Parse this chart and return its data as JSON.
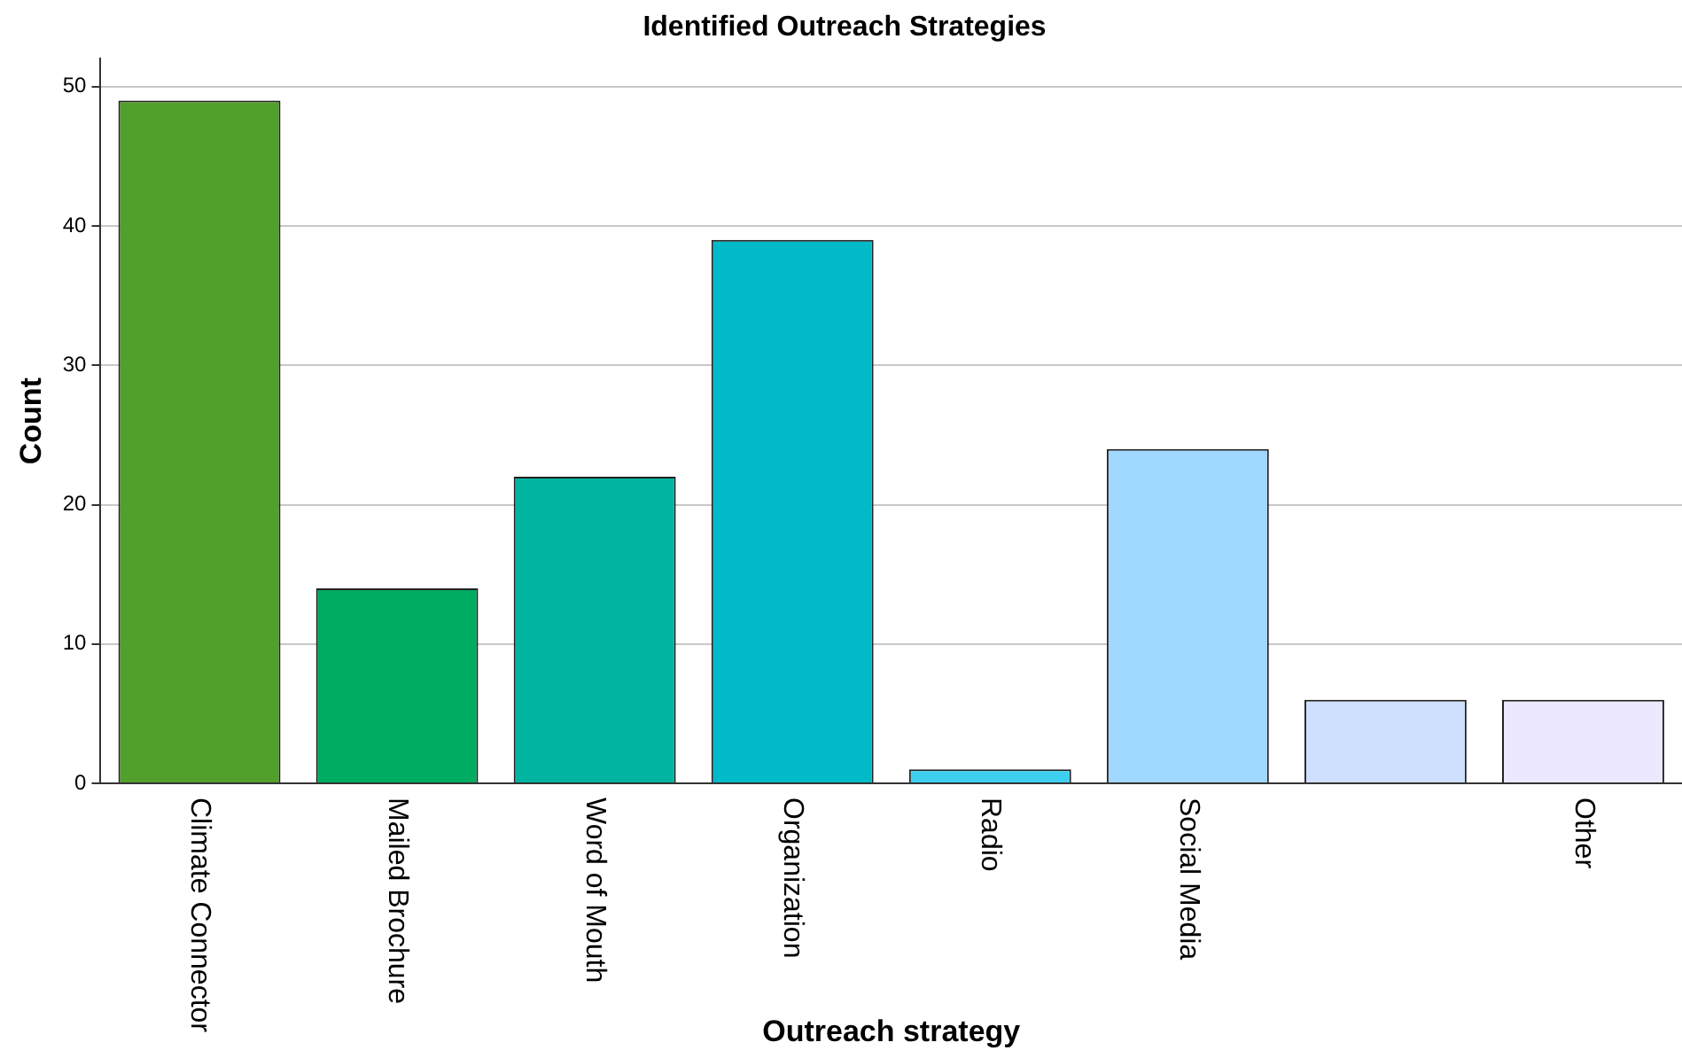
{
  "chart_data": {
    "type": "bar",
    "title": "Identified Outreach Strategies",
    "xlabel": "Outreach strategy",
    "ylabel": "Count",
    "categories": [
      "Climate Connector",
      "Mailed Brochure",
      "Word of Mouth",
      "Organization",
      "Radio",
      "Social Media",
      null,
      "Other"
    ],
    "values": [
      49,
      14,
      22,
      39,
      1,
      24,
      6,
      6
    ],
    "colors": [
      "#52a02c",
      "#00ab62",
      "#00b49f",
      "#00bac8",
      "#3dcff0",
      "#a0d8ff",
      "#cfe0ff",
      "#ebe8ff"
    ],
    "ylim": [
      0,
      52
    ],
    "yticks": [
      0,
      10,
      20,
      30,
      40,
      50
    ],
    "grid": "y",
    "legend": false
  }
}
